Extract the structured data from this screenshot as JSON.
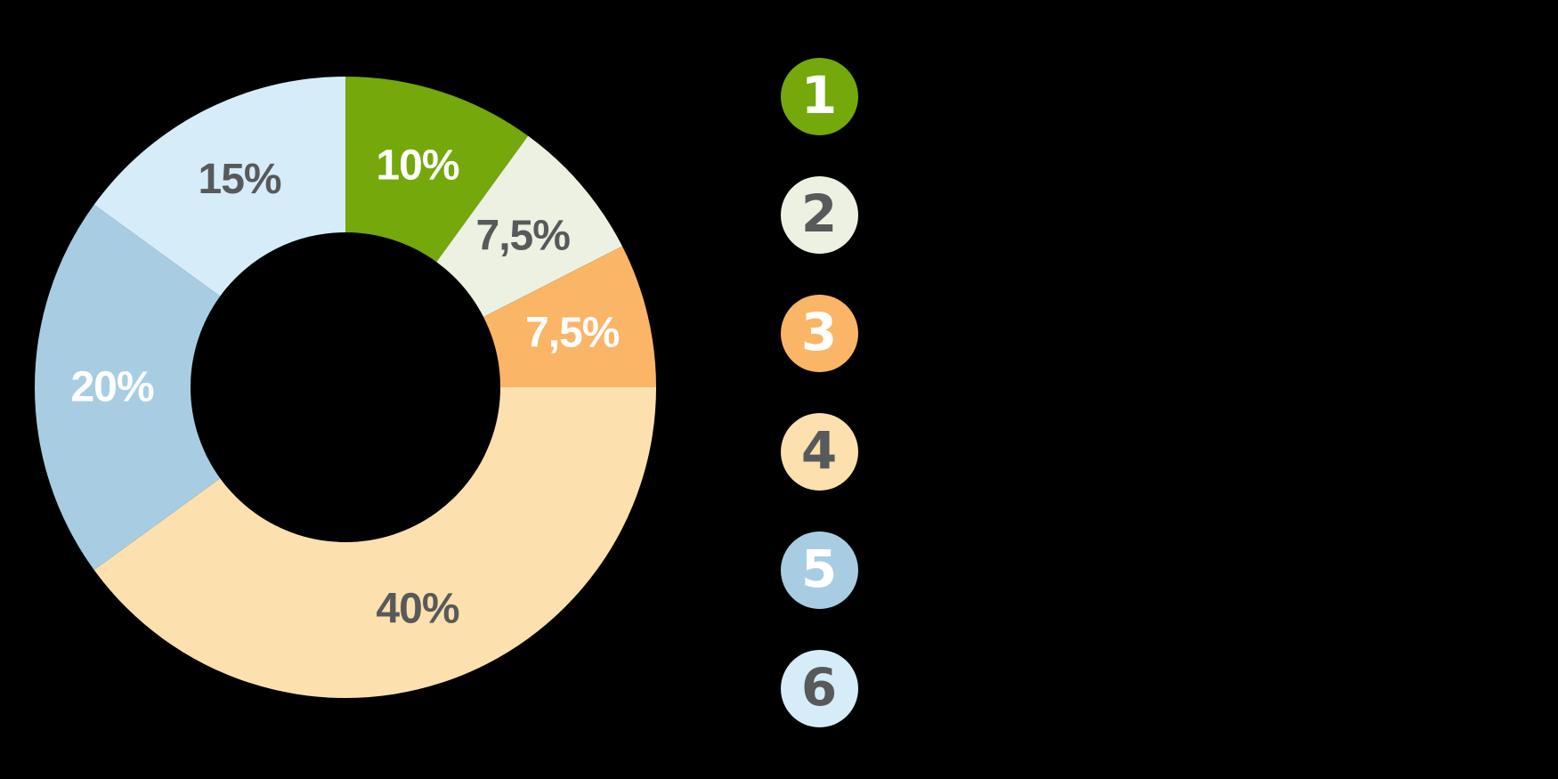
{
  "background_color": "#000000",
  "chart_data": {
    "type": "pie",
    "variant": "donut",
    "title": "",
    "start_angle_deg": 0,
    "direction": "clockwise",
    "inner_radius_ratio": 0.5,
    "grid": false,
    "categories": [
      "1",
      "2",
      "3",
      "4",
      "5",
      "6"
    ],
    "values": [
      10,
      7.5,
      7.5,
      40,
      20,
      15
    ],
    "slices": [
      {
        "number": "1",
        "label": "10%",
        "value": 10,
        "color": "#74A80B",
        "label_color": "#FFFFFF"
      },
      {
        "number": "2",
        "label": "7,5%",
        "value": 7.5,
        "color": "#EDF1E1",
        "label_color": "#58595B"
      },
      {
        "number": "3",
        "label": "7,5%",
        "value": 7.5,
        "color": "#FAB567",
        "label_color": "#FFFFFF"
      },
      {
        "number": "4",
        "label": "40%",
        "value": 40,
        "color": "#FCE0AE",
        "label_color": "#58595B"
      },
      {
        "number": "5",
        "label": "20%",
        "value": 20,
        "color": "#A8CDE3",
        "label_color": "#FFFFFF"
      },
      {
        "number": "6",
        "label": "15%",
        "value": 15,
        "color": "#D6ECF9",
        "label_color": "#58595B"
      }
    ],
    "legend": {
      "position": "right",
      "items": [
        {
          "number": "1",
          "color": "#74A80B",
          "text_color": "#FFFFFF"
        },
        {
          "number": "2",
          "color": "#EDF1E1",
          "text_color": "#58595B"
        },
        {
          "number": "3",
          "color": "#FAB567",
          "text_color": "#FFFFFF"
        },
        {
          "number": "4",
          "color": "#FCE0AE",
          "text_color": "#58595B"
        },
        {
          "number": "5",
          "color": "#A8CDE3",
          "text_color": "#FFFFFF"
        },
        {
          "number": "6",
          "color": "#D6ECF9",
          "text_color": "#58595B"
        }
      ]
    }
  }
}
